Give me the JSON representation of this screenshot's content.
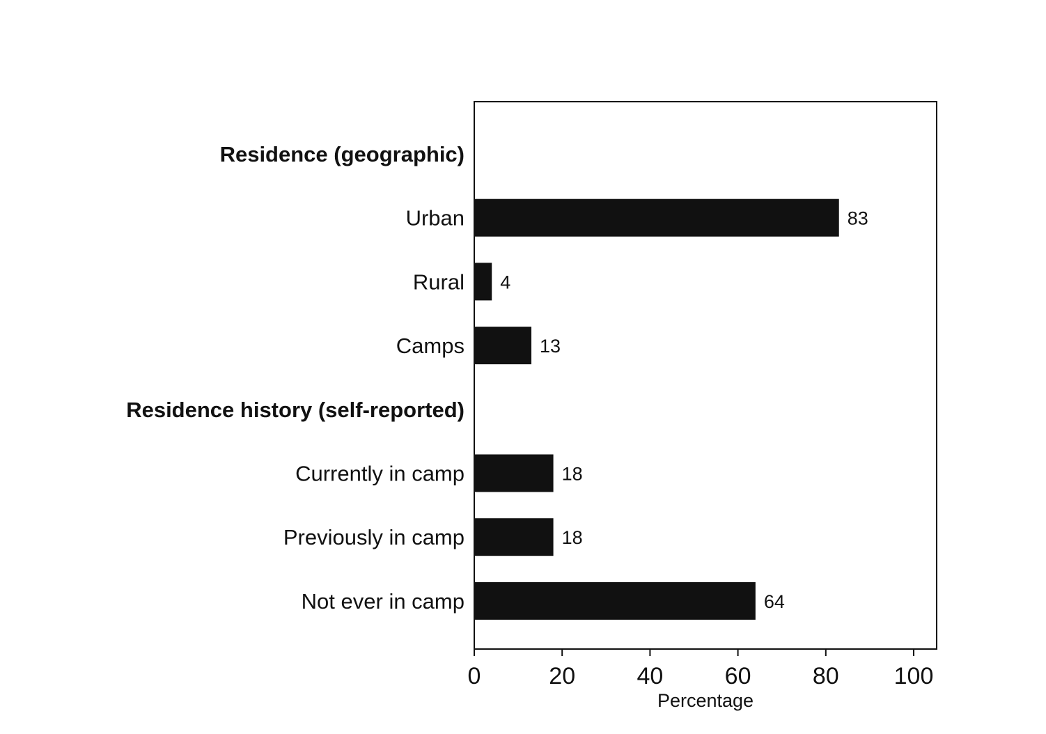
{
  "chart_data": {
    "type": "bar",
    "orientation": "horizontal",
    "xlabel": "Percentage",
    "xlim": [
      0,
      100
    ],
    "xticks": [
      "0",
      "20",
      "40",
      "60",
      "80",
      "100"
    ],
    "bar_color": "#111111",
    "grid": false,
    "rows": [
      {
        "kind": "group",
        "label": "Residence (geographic)"
      },
      {
        "kind": "bar",
        "label": "Urban",
        "value": 83,
        "value_label": "83"
      },
      {
        "kind": "bar",
        "label": "Rural",
        "value": 4,
        "value_label": "4"
      },
      {
        "kind": "bar",
        "label": "Camps",
        "value": 13,
        "value_label": "13"
      },
      {
        "kind": "group",
        "label": "Residence history (self-reported)"
      },
      {
        "kind": "bar",
        "label": "Currently in camp",
        "value": 18,
        "value_label": "18"
      },
      {
        "kind": "bar",
        "label": "Previously in camp",
        "value": 18,
        "value_label": "18"
      },
      {
        "kind": "bar",
        "label": "Not ever in camp",
        "value": 64,
        "value_label": "64"
      }
    ]
  }
}
